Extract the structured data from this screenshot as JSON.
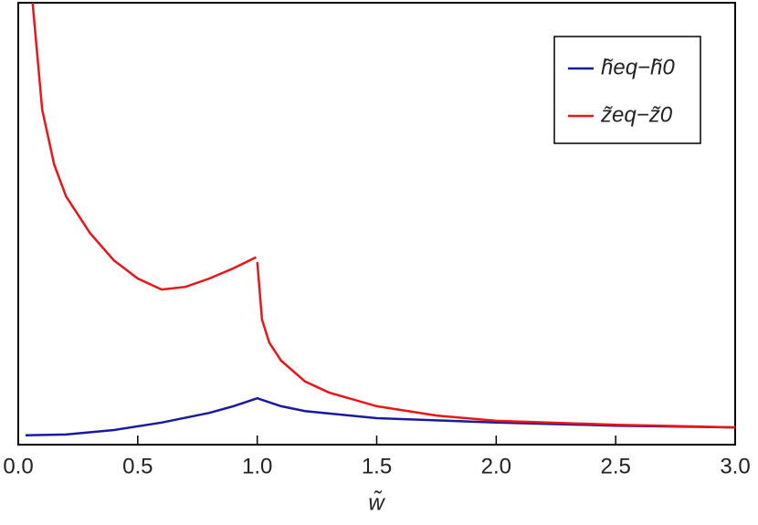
{
  "chart_data": {
    "type": "line",
    "xlabel": "w̃",
    "xlim": [
      0,
      3
    ],
    "xticks": [
      {
        "value": 0,
        "label": "0.0"
      },
      0.5,
      {
        "value": 1,
        "label": "1.0"
      },
      1.5,
      {
        "value": 2,
        "label": "2.0"
      },
      2.5,
      {
        "value": 3,
        "label": "3.0"
      }
    ],
    "ylim": [
      0,
      100
    ],
    "legend": "top-right",
    "series": [
      {
        "name": "h̃eq−h̃0",
        "color": "#1a1a9c",
        "x": [
          0.03,
          0.2,
          0.4,
          0.6,
          0.8,
          0.9,
          1.0,
          1.1,
          1.2,
          1.5,
          2.0,
          2.5,
          3.0
        ],
        "values": [
          2.1,
          2.3,
          3.3,
          5.0,
          7.2,
          8.7,
          10.5,
          8.7,
          7.6,
          6.0,
          5.0,
          4.3,
          3.9
        ]
      },
      {
        "name": "z̃eq−z̃0",
        "color": "#e8161b",
        "x": [
          0.06,
          0.1,
          0.15,
          0.2,
          0.3,
          0.4,
          0.5,
          0.6,
          0.7,
          0.8,
          0.9,
          0.995,
          1.0,
          1.0,
          1.02,
          1.05,
          1.1,
          1.2,
          1.3,
          1.5,
          1.75,
          2.0,
          2.5,
          3.0
        ],
        "values": [
          100,
          75.8,
          63.4,
          56.2,
          47.9,
          41.7,
          37.6,
          35.1,
          35.7,
          37.6,
          39.9,
          42.4,
          null,
          41.3,
          28.3,
          23.1,
          19.0,
          14.3,
          11.8,
          8.7,
          6.6,
          5.4,
          4.5,
          3.9
        ]
      }
    ]
  }
}
